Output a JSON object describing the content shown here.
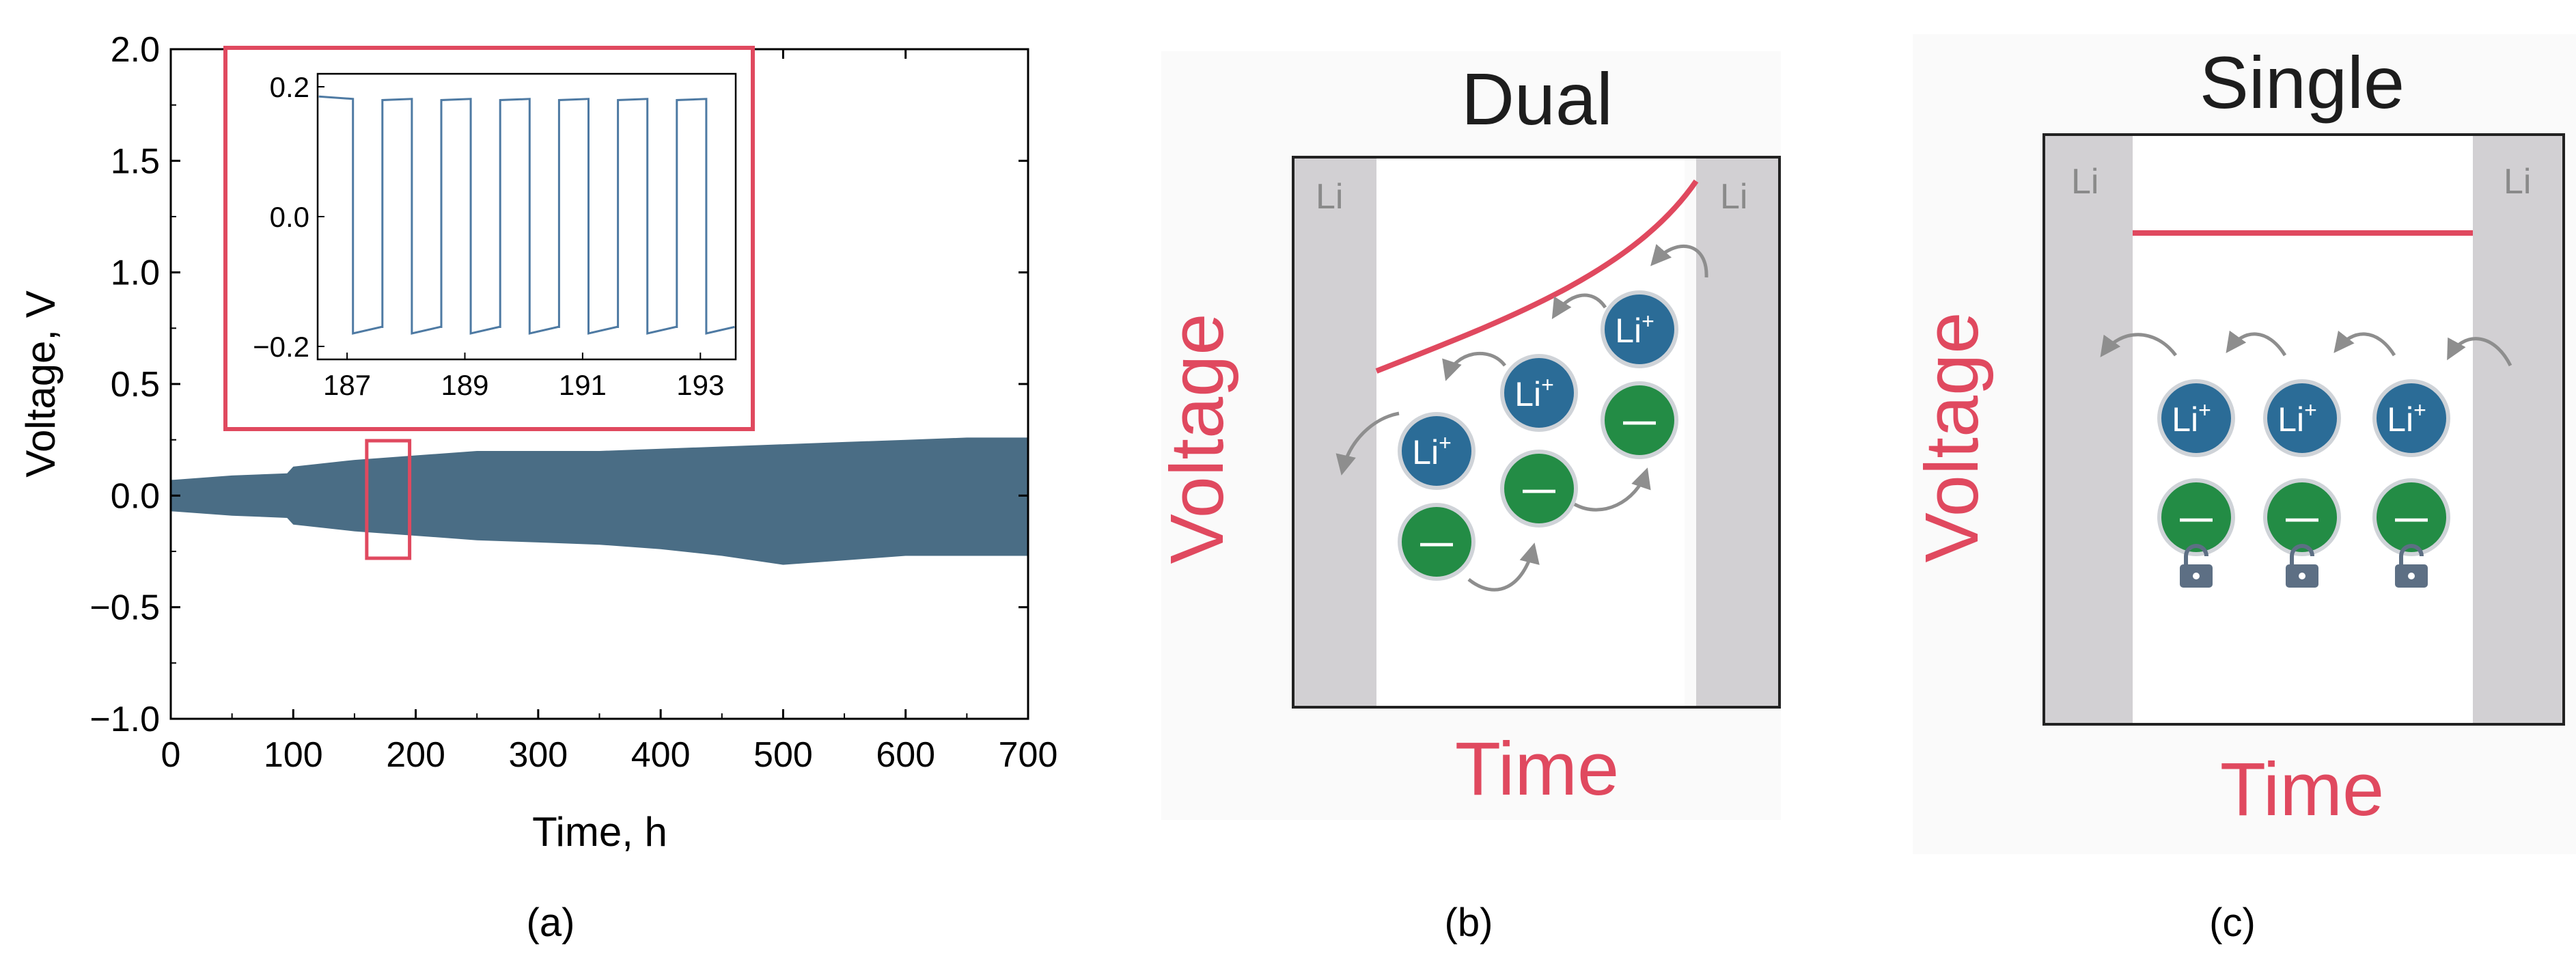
{
  "chart_data": [
    {
      "panel": "a",
      "type": "line",
      "title": "",
      "xlabel": "Time, h",
      "ylabel": "Voltage, V",
      "xlim": [
        0,
        700
      ],
      "ylim": [
        -1.0,
        2.0
      ],
      "x_ticks": [
        "0",
        "100",
        "200",
        "300",
        "400",
        "500",
        "600",
        "700"
      ],
      "x_tick_values": [
        0,
        100,
        200,
        300,
        400,
        500,
        600,
        700
      ],
      "y_ticks": [
        "2.0",
        "1.5",
        "1.0",
        "0.5",
        "0.0",
        "−0.5",
        "−1.0"
      ],
      "y_tick_values": [
        2.0,
        1.5,
        1.0,
        0.5,
        0.0,
        -0.5,
        -1.0
      ],
      "series": [
        {
          "name": "Voltage envelope (upper)",
          "x": [
            0,
            50,
            95,
            100,
            150,
            200,
            250,
            300,
            350,
            400,
            450,
            500,
            550,
            600,
            650,
            700
          ],
          "values": [
            0.07,
            0.09,
            0.1,
            0.13,
            0.16,
            0.18,
            0.2,
            0.2,
            0.2,
            0.21,
            0.22,
            0.23,
            0.24,
            0.25,
            0.26,
            0.26
          ]
        },
        {
          "name": "Voltage envelope (lower)",
          "x": [
            0,
            50,
            95,
            100,
            150,
            200,
            250,
            300,
            350,
            400,
            450,
            500,
            550,
            600,
            650,
            700
          ],
          "values": [
            -0.07,
            -0.09,
            -0.1,
            -0.13,
            -0.16,
            -0.18,
            -0.2,
            -0.21,
            -0.22,
            -0.24,
            -0.27,
            -0.31,
            -0.29,
            -0.27,
            -0.27,
            -0.27
          ]
        }
      ],
      "highlight_window_x": [
        160,
        195
      ],
      "inset": {
        "type": "line",
        "xlim": [
          186.5,
          193.6
        ],
        "ylim": [
          -0.22,
          0.22
        ],
        "x_ticks": [
          "187",
          "189",
          "191",
          "193"
        ],
        "x_tick_values": [
          187,
          189,
          191,
          193
        ],
        "y_ticks": [
          "0.2",
          "0.0",
          "−0.2"
        ],
        "y_tick_values": [
          0.2,
          0.0,
          -0.2
        ],
        "square_wave": {
          "start": 186.6,
          "period": 1.0,
          "high_fraction": 0.5,
          "cycles": 7,
          "high": 0.185,
          "low": -0.18
        }
      }
    },
    {
      "panel": "b",
      "type": "line",
      "title": "Dual",
      "xlabel": "Time",
      "ylabel": "Voltage",
      "electrode_left": "Li",
      "electrode_right": "Li",
      "cation_label": "Li",
      "cation_charge": "+",
      "anion_symbol": "—",
      "curve_trend": "rising"
    },
    {
      "panel": "c",
      "type": "line",
      "title": "Single",
      "xlabel": "Time",
      "ylabel": "Voltage",
      "electrode_left": "Li",
      "electrode_right": "Li",
      "cation_label": "Li",
      "cation_charge": "+",
      "anion_symbol": "—",
      "curve_trend": "flat",
      "anions_locked": true
    }
  ],
  "captions": [
    "(a)",
    "(b)",
    "(c)"
  ],
  "colors": {
    "envelope": "#4a6d85",
    "inset_line": "#4e7aa3",
    "highlight": "#e0495f",
    "voltage_text": "#e0495f",
    "cation": "#2b6c97",
    "anion": "#238c45",
    "electrode": "#d2d0d3",
    "lock": "#5d6f84",
    "arrow": "#8e8e8e"
  }
}
